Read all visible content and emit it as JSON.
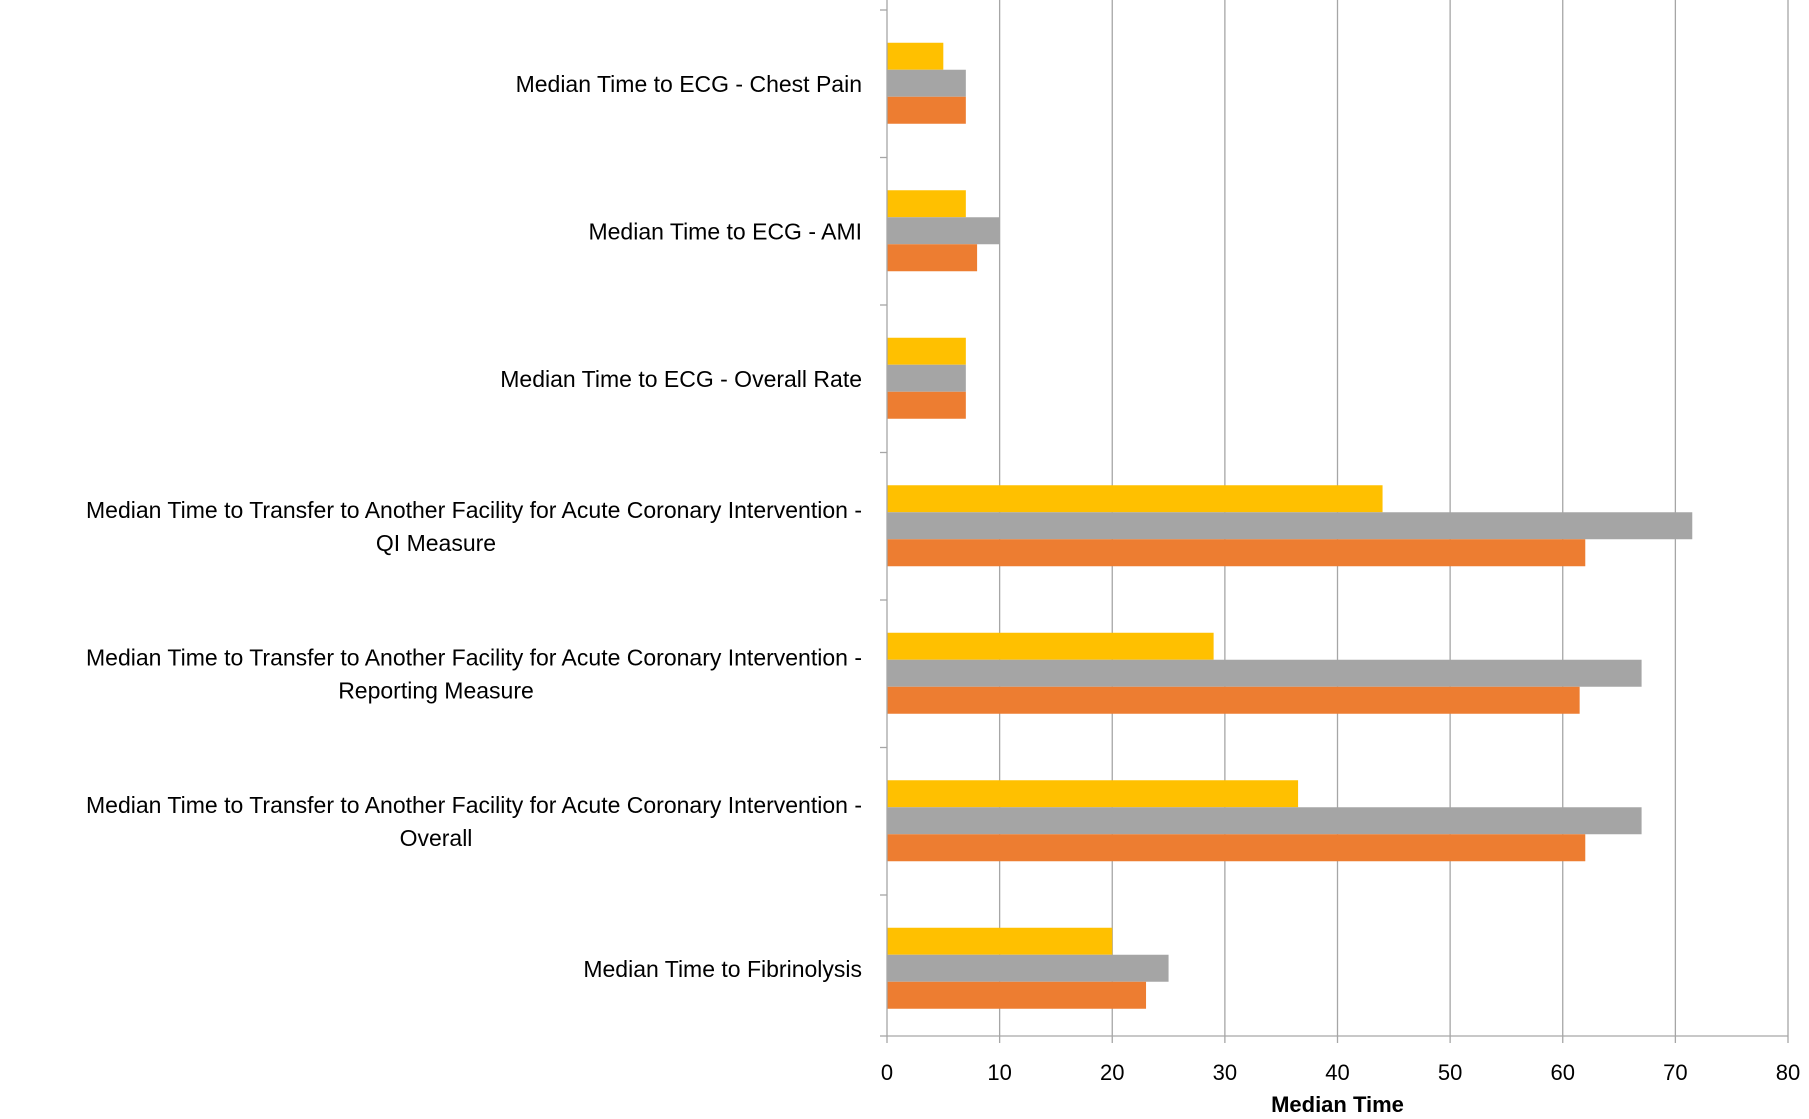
{
  "chart_data": {
    "type": "bar",
    "orientation": "horizontal",
    "categories": [
      [
        "Median Time to ECG - Chest Pain"
      ],
      [
        "Median Time to ECG - AMI"
      ],
      [
        "Median Time to ECG - Overall Rate"
      ],
      [
        "Median Time to Transfer to Another Facility for Acute Coronary Intervention -",
        "QI Measure"
      ],
      [
        "Median Time to Transfer to Another Facility for Acute Coronary Intervention -",
        "Reporting Measure"
      ],
      [
        "Median Time to Transfer to Another Facility for Acute Coronary Intervention -",
        "Overall"
      ],
      [
        "Median Time to Fibrinolysis"
      ]
    ],
    "series": [
      {
        "color": "#FFC000",
        "values": [
          5,
          7,
          7,
          44,
          29,
          36.5,
          20
        ]
      },
      {
        "color": "#A5A5A5",
        "values": [
          7,
          10,
          7,
          71.5,
          67,
          67,
          25
        ]
      },
      {
        "color": "#ED7D31",
        "values": [
          7,
          8,
          7,
          62,
          61.5,
          62,
          23
        ]
      }
    ],
    "xlabel": "Median Time",
    "ylabel": "",
    "xlim": [
      0,
      80
    ],
    "xticks": [
      "0",
      "10",
      "20",
      "30",
      "40",
      "50",
      "60",
      "70",
      "80"
    ],
    "grid": "vertical",
    "legend": "none"
  }
}
